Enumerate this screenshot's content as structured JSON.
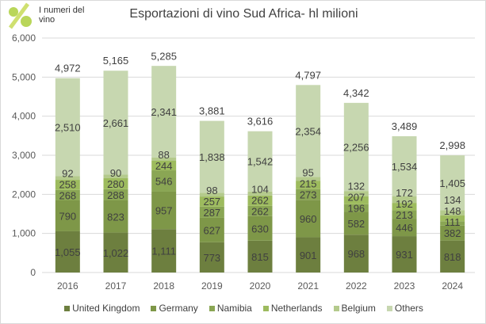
{
  "logo": {
    "text": "I numeri del vino"
  },
  "chart_data": {
    "type": "bar",
    "stacked": true,
    "title": "Esportazioni di vino Sud Africa- hl milioni",
    "categories": [
      "2016",
      "2017",
      "2018",
      "2019",
      "2020",
      "2021",
      "2022",
      "2023",
      "2024"
    ],
    "ylim": [
      0,
      6000
    ],
    "yticks": [
      "0",
      "1,000",
      "2,000",
      "3,000",
      "4,000",
      "5,000",
      "6,000"
    ],
    "grid": true,
    "legend": "bottom",
    "series": [
      {
        "name": "United Kingdom",
        "color": "#6d7f3f",
        "values": [
          1055,
          1022,
          1111,
          773,
          815,
          901,
          968,
          931,
          818
        ]
      },
      {
        "name": "Germany",
        "color": "#7e9748",
        "values": [
          790,
          823,
          957,
          627,
          630,
          960,
          582,
          446,
          382
        ]
      },
      {
        "name": "Namibia",
        "color": "#8aa654",
        "values": [
          268,
          288,
          546,
          287,
          262,
          273,
          196,
          213,
          111
        ]
      },
      {
        "name": "Netherlands",
        "color": "#9dbb5e",
        "values": [
          258,
          280,
          244,
          257,
          262,
          215,
          207,
          192,
          148
        ]
      },
      {
        "name": "Belgium",
        "color": "#b4ca8c",
        "values": [
          92,
          90,
          88,
          98,
          104,
          95,
          132,
          172,
          134
        ]
      },
      {
        "name": "Others",
        "color": "#c7d7b0",
        "values": [
          2510,
          2661,
          2341,
          1838,
          1542,
          2354,
          2256,
          1534,
          1405
        ]
      }
    ],
    "totals": [
      4972,
      5165,
      5285,
      3881,
      3616,
      4797,
      4342,
      3489,
      2998
    ]
  }
}
